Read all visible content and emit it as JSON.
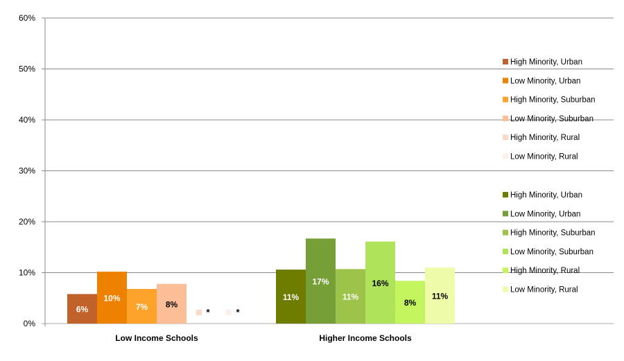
{
  "chart_data": {
    "type": "bar",
    "title": "",
    "xlabel": "",
    "ylabel": "",
    "ylim": [
      0,
      60
    ],
    "yticks": [
      "0%",
      "10%",
      "20%",
      "30%",
      "40%",
      "50%",
      "60%"
    ],
    "grid": true,
    "legend_position": "right",
    "groups": [
      {
        "category": "Low Income Schools",
        "series": [
          {
            "name": "High Minority, Urban",
            "value": 5.8,
            "label": "6%",
            "color": "#C0622A",
            "label_color": "#ffffff"
          },
          {
            "name": "Low Minority, Urban",
            "value": 10.2,
            "label": "10%",
            "color": "#EE8200",
            "label_color": "#ffffff"
          },
          {
            "name": "High Minority, Suburban",
            "value": 6.8,
            "label": "7%",
            "color": "#FDA22A",
            "label_color": "#ffffff"
          },
          {
            "name": "Low Minority, Suburban",
            "value": 7.8,
            "label": "8%",
            "color": "#FBBE96",
            "label_color": "#000000"
          },
          {
            "name": "High Minority, Rural",
            "value": null,
            "label": "*",
            "color": "#FCD9C4",
            "label_color": "#000000"
          },
          {
            "name": "Low Minority, Rural",
            "value": null,
            "label": "*",
            "color": "#FDF0EA",
            "label_color": "#000000"
          }
        ]
      },
      {
        "category": "Higher Income Schools",
        "series": [
          {
            "name": "High Minority, Urban",
            "value": 10.6,
            "label": "11%",
            "color": "#6E7D00",
            "label_color": "#ffffff"
          },
          {
            "name": "Low Minority, Urban",
            "value": 16.7,
            "label": "17%",
            "color": "#779F38",
            "label_color": "#ffffff"
          },
          {
            "name": "High Minority, Suburban",
            "value": 10.7,
            "label": "11%",
            "color": "#9DC34A",
            "label_color": "#ffffff"
          },
          {
            "name": "Low Minority, Suburban",
            "value": 16.1,
            "label": "16%",
            "color": "#AEE35A",
            "label_color": "#000000"
          },
          {
            "name": "High Minority, Rural",
            "value": 8.4,
            "label": "8%",
            "color": "#C4F55E",
            "label_color": "#000000"
          },
          {
            "name": "Low Minority, Rural",
            "value": 11.0,
            "label": "11%",
            "color": "#EEFBA8",
            "label_color": "#000000"
          }
        ]
      }
    ]
  }
}
